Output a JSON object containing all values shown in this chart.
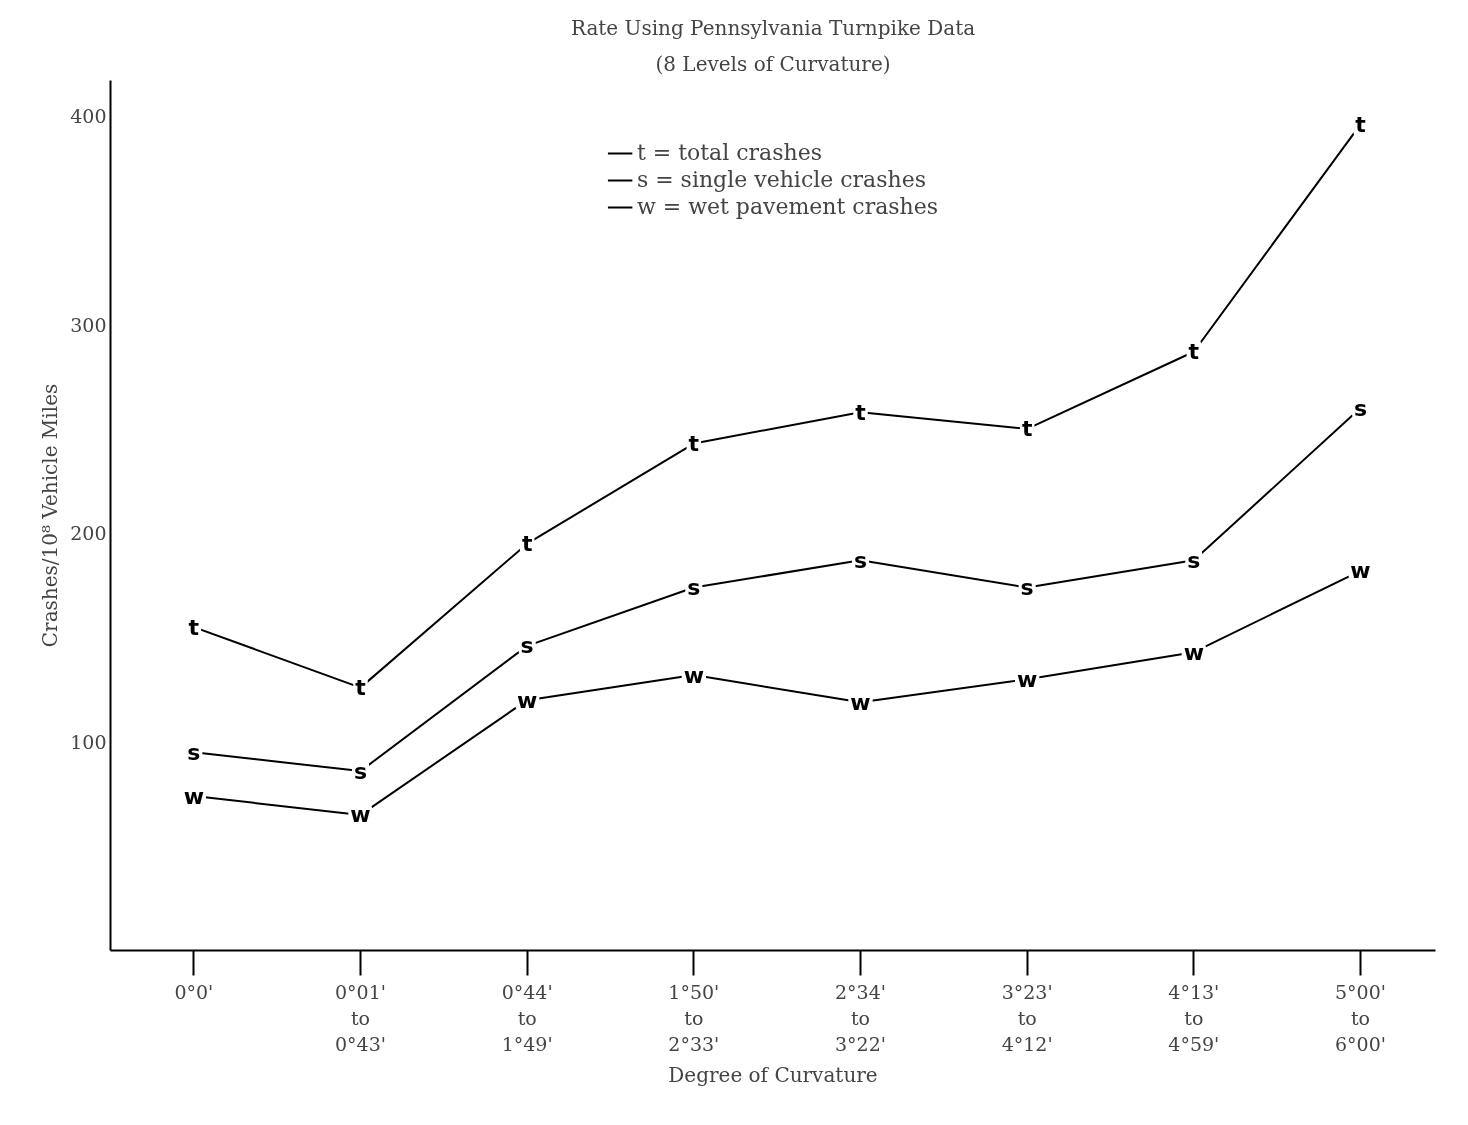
{
  "chart_data": {
    "type": "line",
    "title": "Rate Using Pennsylvania Turnpike Data",
    "subtitle": "(8 Levels of Curvature)",
    "xlabel": "Degree of Curvature",
    "ylabel": "Crashes/10⁸ Vehicle Miles",
    "categories": [
      "0°0'",
      "0°01'\nto\n0°43'",
      "0°44'\nto\n1°49'",
      "1°50'\nto\n2°33'",
      "2°34'\nto\n3°22'",
      "3°23'\nto\n4°12'",
      "4°13'\nto\n4°59'",
      "5°00'\nto\n6°00'"
    ],
    "series": [
      {
        "name": "t = total crashes",
        "color": "#000000",
        "values": [
          155,
          126,
          195,
          243,
          258,
          250,
          287,
          396
        ],
        "value_labels": [
          "t",
          "t",
          "t",
          "t",
          "t",
          "t",
          "t",
          "t"
        ]
      },
      {
        "name": "s = single vehicle crashes",
        "color": "#000000",
        "values": [
          95,
          86,
          146,
          174,
          187,
          174,
          187,
          260
        ],
        "value_labels": [
          "s",
          "s",
          "s",
          "s",
          "s",
          "s",
          "s",
          "s"
        ]
      },
      {
        "name": "w = wet pavement crashes",
        "color": "#000000",
        "values": [
          74,
          65,
          120,
          132,
          119,
          130,
          143,
          182
        ],
        "value_labels": [
          "w",
          "w",
          "w",
          "w",
          "w",
          "w",
          "w",
          "w"
        ]
      }
    ],
    "ylim": [
      0,
      417
    ],
    "yticks": [
      100,
      200,
      300,
      400
    ],
    "grid": false,
    "legend": "top",
    "marker": "none"
  }
}
